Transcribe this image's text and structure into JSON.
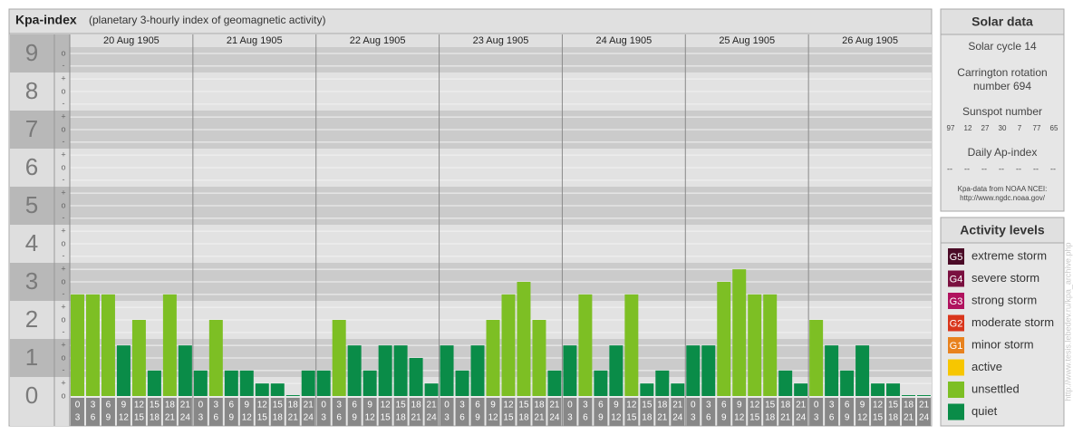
{
  "chart_data": {
    "type": "bar",
    "title": "Kpa-index",
    "subtitle": "(planetary 3-hourly index of geomagnetic activity)",
    "ylim": [
      0,
      9.5
    ],
    "yticks": [
      0,
      1,
      2,
      3,
      4,
      5,
      6,
      7,
      8,
      9
    ],
    "minor_ticks": [
      {
        "value": 0,
        "label": "o"
      },
      {
        "value": 0.33,
        "label": "+"
      },
      {
        "value": 0.67,
        "label": "-"
      },
      {
        "value": 1,
        "label": "o"
      },
      {
        "value": 1.33,
        "label": "+"
      },
      {
        "value": 1.67,
        "label": "-"
      },
      {
        "value": 2,
        "label": "o"
      },
      {
        "value": 2.33,
        "label": "+"
      },
      {
        "value": 2.67,
        "label": "-"
      },
      {
        "value": 3,
        "label": "o"
      },
      {
        "value": 3.33,
        "label": "+"
      },
      {
        "value": 3.67,
        "label": "-"
      },
      {
        "value": 4,
        "label": "o"
      },
      {
        "value": 4.33,
        "label": "+"
      },
      {
        "value": 4.67,
        "label": "-"
      },
      {
        "value": 5,
        "label": "o"
      },
      {
        "value": 5.33,
        "label": "+"
      },
      {
        "value": 5.67,
        "label": "-"
      },
      {
        "value": 6,
        "label": "o"
      },
      {
        "value": 6.33,
        "label": "+"
      },
      {
        "value": 6.67,
        "label": "-"
      },
      {
        "value": 7,
        "label": "o"
      },
      {
        "value": 7.33,
        "label": "+"
      },
      {
        "value": 7.67,
        "label": "-"
      },
      {
        "value": 8,
        "label": "o"
      },
      {
        "value": 8.33,
        "label": "+"
      },
      {
        "value": 8.67,
        "label": "-"
      },
      {
        "value": 9,
        "label": "o"
      }
    ],
    "hours_start": [
      "0",
      "3",
      "6",
      "9",
      "12",
      "15",
      "18",
      "21"
    ],
    "hours_end": [
      "3",
      "6",
      "9",
      "12",
      "15",
      "18",
      "21",
      "24"
    ],
    "days": [
      {
        "label": "20 Aug 1905",
        "values": [
          2.67,
          2.67,
          2.67,
          1.33,
          2,
          0.67,
          2.67,
          1.33
        ],
        "colors": [
          "#7dbf24",
          "#7dbf24",
          "#7dbf24",
          "#0a8c48",
          "#7dbf24",
          "#0a8c48",
          "#7dbf24",
          "#0a8c48"
        ]
      },
      {
        "label": "21 Aug 1905",
        "values": [
          0.67,
          2,
          0.67,
          0.67,
          0.33,
          0.33,
          0,
          0.67
        ],
        "colors": [
          "#0a8c48",
          "#7dbf24",
          "#0a8c48",
          "#0a8c48",
          "#0a8c48",
          "#0a8c48",
          "#0a8c48",
          "#0a8c48"
        ]
      },
      {
        "label": "22 Aug 1905",
        "values": [
          0.67,
          2,
          1.33,
          0.67,
          1.33,
          1.33,
          1,
          0.33
        ],
        "colors": [
          "#0a8c48",
          "#7dbf24",
          "#0a8c48",
          "#0a8c48",
          "#0a8c48",
          "#0a8c48",
          "#0a8c48",
          "#0a8c48"
        ]
      },
      {
        "label": "23 Aug 1905",
        "values": [
          1.33,
          0.67,
          1.33,
          2,
          2.67,
          3,
          2,
          0.67
        ],
        "colors": [
          "#0a8c48",
          "#0a8c48",
          "#0a8c48",
          "#7dbf24",
          "#7dbf24",
          "#7dbf24",
          "#7dbf24",
          "#0a8c48"
        ]
      },
      {
        "label": "24 Aug 1905",
        "values": [
          1.33,
          2.67,
          0.67,
          1.33,
          2.67,
          0.33,
          0.67,
          0.33
        ],
        "colors": [
          "#0a8c48",
          "#7dbf24",
          "#0a8c48",
          "#0a8c48",
          "#7dbf24",
          "#0a8c48",
          "#0a8c48",
          "#0a8c48"
        ]
      },
      {
        "label": "25 Aug 1905",
        "values": [
          1.33,
          1.33,
          3,
          3.33,
          2.67,
          2.67,
          0.67,
          0.33
        ],
        "colors": [
          "#0a8c48",
          "#0a8c48",
          "#7dbf24",
          "#7dbf24",
          "#7dbf24",
          "#7dbf24",
          "#0a8c48",
          "#0a8c48"
        ]
      },
      {
        "label": "26 Aug 1905",
        "values": [
          2,
          1.33,
          0.67,
          1.33,
          0.33,
          0.33,
          0,
          0
        ],
        "colors": [
          "#7dbf24",
          "#0a8c48",
          "#0a8c48",
          "#0a8c48",
          "#0a8c48",
          "#0a8c48",
          "#0a8c48",
          "#0a8c48"
        ]
      }
    ]
  },
  "side": {
    "solar": {
      "title": "Solar data",
      "cycle": "Solar cycle 14",
      "carrington": [
        "Carrington rotation",
        "number 694"
      ],
      "sunspot_title": "Sunspot number",
      "sunspot_numbers": [
        97,
        12,
        27,
        30,
        7,
        77,
        65
      ],
      "ap_title": "Daily Ap-index",
      "ap_values": [
        "--",
        "--",
        "--",
        "--",
        "--",
        "--",
        "--"
      ],
      "source": [
        "Kpa-data from NOAA NCEI:",
        "http://www.ngdc.noaa.gov/"
      ]
    },
    "levels": {
      "title": "Activity levels",
      "items": [
        {
          "badge": "G5",
          "label": "extreme storm",
          "color": "#4a0a26"
        },
        {
          "badge": "G4",
          "label": "severe storm",
          "color": "#7a1040"
        },
        {
          "badge": "G3",
          "label": "strong storm",
          "color": "#b0125e"
        },
        {
          "badge": "G2",
          "label": "moderate storm",
          "color": "#d9361c"
        },
        {
          "badge": "G1",
          "label": "minor storm",
          "color": "#e8821e"
        },
        {
          "badge": null,
          "label": "active",
          "color": "#f7c600"
        },
        {
          "badge": null,
          "label": "unsettled",
          "color": "#7dbf24"
        },
        {
          "badge": null,
          "label": "quiet",
          "color": "#0a8c48"
        }
      ]
    },
    "watermark": "http://www.tesis.lebedev.ru/kpa_archive.php"
  }
}
